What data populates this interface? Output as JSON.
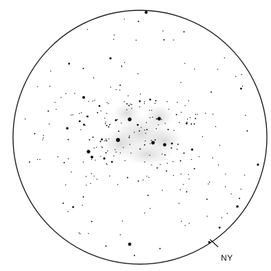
{
  "sketch": {
    "orientation_label": "NY",
    "star_count_estimate": 260,
    "nebulosity_present": true
  },
  "colors": {
    "background": "#ffffff",
    "field_outline": "#1a1a1a",
    "stars": "#111111",
    "nebulosity": "#c8c8c8"
  }
}
